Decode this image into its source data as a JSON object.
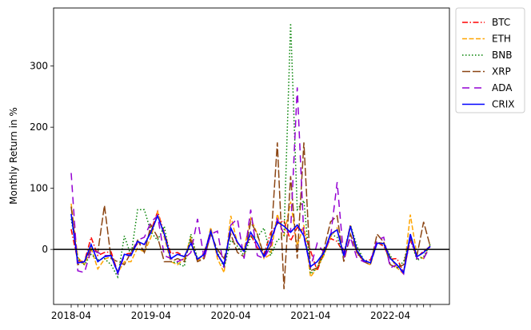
{
  "chart_data": {
    "type": "line",
    "title": "",
    "xlabel": "",
    "ylabel": "Monthly Return in %",
    "x": [
      "2018-04",
      "2018-05",
      "2018-06",
      "2018-07",
      "2018-08",
      "2018-09",
      "2018-10",
      "2018-11",
      "2018-12",
      "2019-01",
      "2019-02",
      "2019-03",
      "2019-04",
      "2019-05",
      "2019-06",
      "2019-07",
      "2019-08",
      "2019-09",
      "2019-10",
      "2019-11",
      "2019-12",
      "2020-01",
      "2020-02",
      "2020-03",
      "2020-04",
      "2020-05",
      "2020-06",
      "2020-07",
      "2020-08",
      "2020-09",
      "2020-10",
      "2020-11",
      "2020-12",
      "2021-01",
      "2021-02",
      "2021-03",
      "2021-04",
      "2021-05",
      "2021-06",
      "2021-07",
      "2021-08",
      "2021-09",
      "2021-10",
      "2021-11",
      "2021-12",
      "2022-01",
      "2022-02",
      "2022-03",
      "2022-04",
      "2022-05",
      "2022-06",
      "2022-07",
      "2022-08",
      "2022-09",
      "2022-10"
    ],
    "xticks": [
      "2018-04",
      "2019-04",
      "2020-04",
      "2021-04",
      "2022-04"
    ],
    "yticks": [
      0,
      100,
      200,
      300
    ],
    "ylim": [
      -90,
      395
    ],
    "hline": 0,
    "legend_position": "outside-right-top",
    "series": [
      {
        "name": "BTC",
        "color": "#ff0000",
        "dash": "dashdot",
        "values": [
          33,
          -19,
          -20,
          20,
          -10,
          -5,
          -4,
          -37,
          -8,
          -6,
          10,
          8,
          30,
          62,
          27,
          -7,
          -5,
          -12,
          10,
          -18,
          -5,
          30,
          -10,
          -25,
          34,
          10,
          -3,
          24,
          3,
          -8,
          27,
          42,
          47,
          14,
          36,
          30,
          -2,
          -35,
          -6,
          18,
          13,
          -7,
          40,
          -7,
          -19,
          -17,
          12,
          5,
          -16,
          -15,
          -37,
          16,
          -13,
          -3,
          5
        ]
      },
      {
        "name": "ETH",
        "color": "#ffa500",
        "dash": "dashed",
        "values": [
          75,
          -13,
          -25,
          2,
          -32,
          -16,
          -12,
          -38,
          -20,
          -20,
          3,
          -5,
          20,
          62,
          20,
          -20,
          -25,
          -15,
          20,
          -18,
          -13,
          36,
          -15,
          -38,
          55,
          10,
          0,
          51,
          25,
          -15,
          -8,
          58,
          22,
          78,
          6,
          40,
          -45,
          -30,
          -10,
          20,
          35,
          -10,
          40,
          0,
          -20,
          -25,
          10,
          12,
          -13,
          -30,
          -40,
          57,
          -10,
          -15,
          8
        ]
      },
      {
        "name": "BNB",
        "color": "#008000",
        "dash": "dotted",
        "values": [
          50,
          -15,
          -25,
          -8,
          -17,
          -15,
          -25,
          -45,
          22,
          -10,
          65,
          65,
          28,
          15,
          38,
          -20,
          -22,
          -28,
          25,
          -15,
          -10,
          28,
          -5,
          -30,
          15,
          5,
          -10,
          20,
          20,
          35,
          -10,
          15,
          22,
          370,
          65,
          80,
          -40,
          -30,
          -8,
          25,
          20,
          -12,
          40,
          5,
          -17,
          -22,
          12,
          8,
          -10,
          -30,
          -20,
          18,
          -18,
          -12,
          8
        ]
      },
      {
        "name": "XRP",
        "color": "#8b4513",
        "dash": "longdash",
        "values": [
          70,
          -25,
          -20,
          0,
          -5,
          72,
          -15,
          -20,
          -25,
          -5,
          15,
          -5,
          40,
          20,
          -20,
          -20,
          -15,
          -20,
          15,
          -20,
          -15,
          25,
          0,
          -15,
          25,
          -5,
          -12,
          45,
          25,
          -10,
          5,
          175,
          -65,
          120,
          -15,
          175,
          -35,
          -30,
          0,
          45,
          55,
          -20,
          25,
          -5,
          -20,
          -25,
          25,
          12,
          -25,
          -30,
          -25,
          20,
          -10,
          45,
          5
        ]
      },
      {
        "name": "ADA",
        "color": "#9400d3",
        "dash": "loosedash",
        "values": [
          125,
          -35,
          -38,
          0,
          -5,
          -10,
          -10,
          -40,
          -10,
          -10,
          15,
          20,
          45,
          55,
          -10,
          -15,
          -20,
          -15,
          -5,
          50,
          -15,
          25,
          30,
          -30,
          40,
          50,
          -15,
          65,
          -10,
          -15,
          5,
          50,
          25,
          30,
          265,
          20,
          -30,
          10,
          -5,
          20,
          110,
          -15,
          20,
          -15,
          -20,
          -20,
          15,
          20,
          -30,
          -25,
          -40,
          20,
          -15,
          -15,
          5
        ]
      },
      {
        "name": "CRIX",
        "color": "#0000ff",
        "dash": "solid",
        "values": [
          58,
          -22,
          -20,
          8,
          -20,
          -12,
          -10,
          -38,
          -8,
          -10,
          13,
          8,
          28,
          55,
          25,
          -15,
          -8,
          -12,
          10,
          -16,
          -8,
          30,
          -8,
          -25,
          35,
          12,
          -3,
          28,
          10,
          -12,
          15,
          45,
          38,
          28,
          40,
          22,
          -28,
          -20,
          -5,
          25,
          32,
          -10,
          38,
          -2,
          -18,
          -22,
          10,
          10,
          -15,
          -25,
          -38,
          25,
          -12,
          -5,
          5
        ]
      }
    ]
  }
}
